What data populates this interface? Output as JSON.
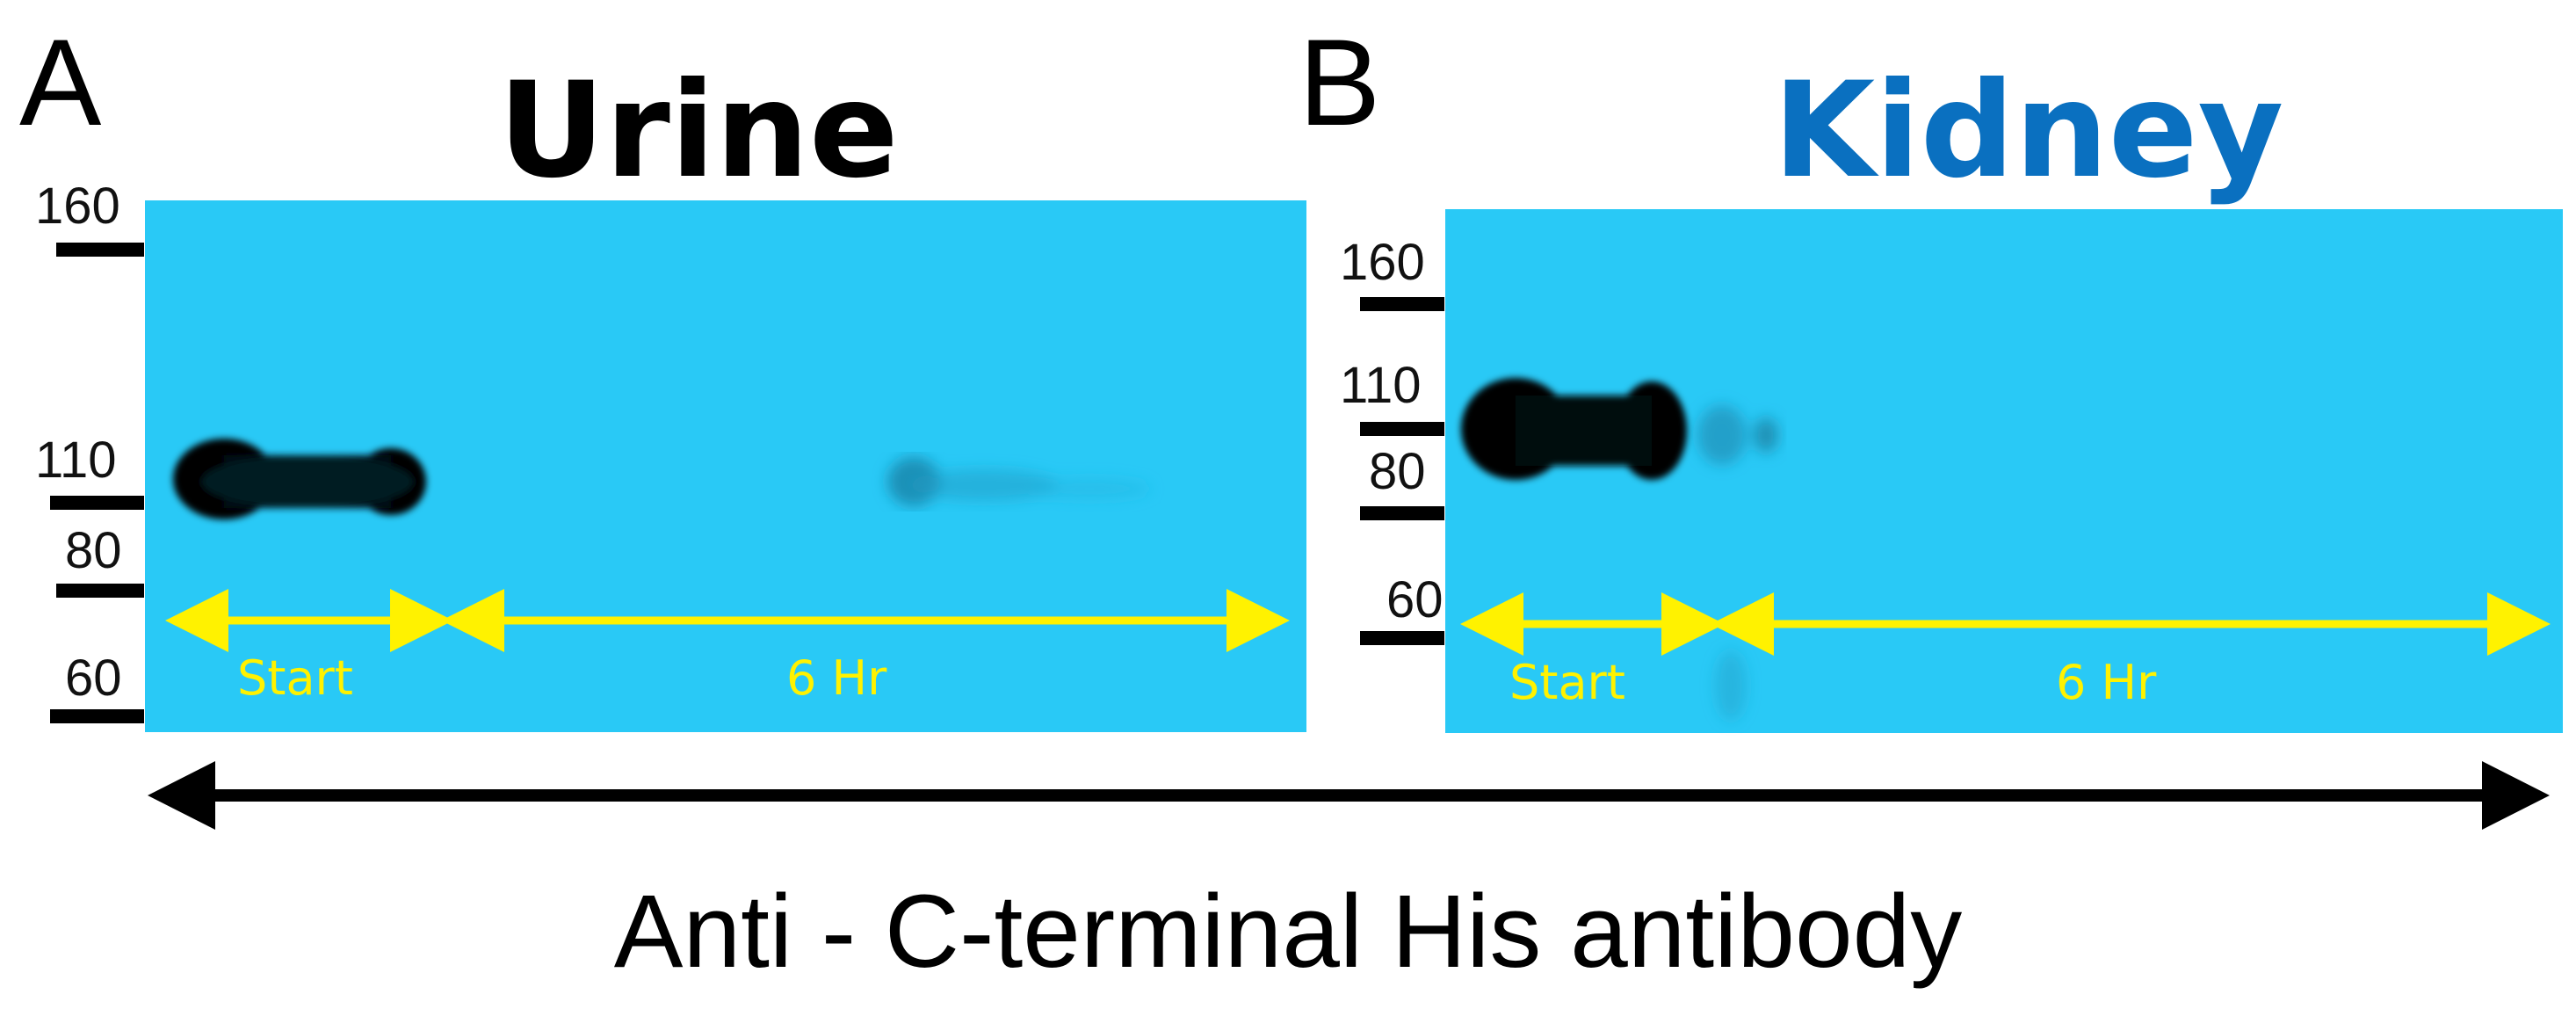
{
  "figure": {
    "caption": "Anti - C-terminal His antibody",
    "panels": [
      {
        "letter": "A",
        "title": "Urine",
        "markers": [
          "160",
          "110",
          "80",
          "60"
        ],
        "lanes": [
          "Start",
          "6 Hr"
        ]
      },
      {
        "letter": "B",
        "title": "Kidney",
        "markers": [
          "160",
          "110",
          "80",
          "60"
        ],
        "lanes": [
          "Start",
          "6 Hr"
        ]
      }
    ]
  },
  "colors": {
    "blot_background": "#29C9F6",
    "band": "#000000",
    "faint_band": "#1E8FB5",
    "arrow_yellow": "#FFF200",
    "title_a": "#000000",
    "title_b": "#0A70C0",
    "scale_arrow": "#000000"
  }
}
